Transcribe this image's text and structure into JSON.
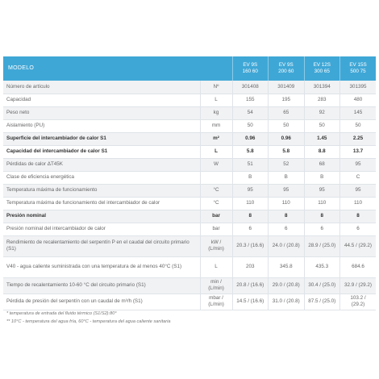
{
  "table": {
    "header": {
      "title": "MODELO",
      "models": [
        {
          "line1": "EV 9S",
          "line2": "160 60"
        },
        {
          "line1": "EV 9S",
          "line2": "200 60"
        },
        {
          "line1": "EV 12S",
          "line2": "300 65"
        },
        {
          "line1": "EV 15S",
          "line2": "500 75"
        }
      ]
    },
    "rows": [
      {
        "label": "Número de artículo",
        "unit": "Nº",
        "values": [
          "301408",
          "301409",
          "301394",
          "301395"
        ],
        "bold": false
      },
      {
        "label": "Capacidad",
        "unit": "L",
        "values": [
          "155",
          "195",
          "283",
          "480"
        ],
        "bold": false
      },
      {
        "label": "Peso neto",
        "unit": "kg",
        "values": [
          "54",
          "65",
          "92",
          "145"
        ],
        "bold": false
      },
      {
        "label": "Aislamiento (PU)",
        "unit": "mm",
        "values": [
          "50",
          "50",
          "50",
          "50"
        ],
        "bold": false
      },
      {
        "label": "Superficie del intercambiador de calor S1",
        "unit": "m²",
        "values": [
          "0.96",
          "0.96",
          "1.45",
          "2.25"
        ],
        "bold": true
      },
      {
        "label": "Capacidad del intercambiador de calor S1",
        "unit": "L",
        "values": [
          "5.8",
          "5.8",
          "8.8",
          "13.7"
        ],
        "bold": true
      },
      {
        "label": "Pérdidas de calor ΔT45K",
        "unit": "W",
        "values": [
          "51",
          "52",
          "68",
          "95"
        ],
        "bold": false
      },
      {
        "label": "Clase de eficiencia energética",
        "unit": "",
        "values": [
          "B",
          "B",
          "B",
          "C"
        ],
        "bold": false
      },
      {
        "label": "Temperatura máxima de funcionamiento",
        "unit": "°C",
        "values": [
          "95",
          "95",
          "95",
          "95"
        ],
        "bold": false
      },
      {
        "label": "Temperatura máxima de funcionamiento del intercambiador de calor",
        "unit": "°C",
        "values": [
          "110",
          "110",
          "110",
          "110"
        ],
        "bold": false
      },
      {
        "label": "Presión nominal",
        "unit": "bar",
        "values": [
          "8",
          "8",
          "8",
          "8"
        ],
        "bold": true
      },
      {
        "label": "Presión nominal del intercambiador de calor",
        "unit": "bar",
        "values": [
          "6",
          "6",
          "6",
          "6"
        ],
        "bold": false
      },
      {
        "label": "Rendimiento de recalentamiento del serpentín P en el caudal del circuito primario (S1)",
        "unit": "kW / (L/min)",
        "values": [
          "20.3 / (16.6)",
          "24.0 / (20.8)",
          "28.9 / (25.0)",
          "44.5 / (29.2)"
        ],
        "bold": false
      },
      {
        "label": "V40 - agua caliente suministrada con una temperatura de al menos 40°C (S1)",
        "unit": "L",
        "values": [
          "203",
          "345.8",
          "435.3",
          "684.6"
        ],
        "bold": false
      },
      {
        "label": "Tiempo de recalentamiento 10-60 °C del circuito primario (S1)",
        "unit": "min / (L/min)",
        "values": [
          "20.8 / (16.6)",
          "29.0 / (20.8)",
          "30.4 / (25.0)",
          "32.9 / (29.2)"
        ],
        "bold": false
      },
      {
        "label": "Pérdida de presión del serpentín con un caudal de m³/h (S1)",
        "unit": "mbar / (L/min)",
        "values": [
          "14.5 / (16.6)",
          "31.0 / (20.8)",
          "87.5 / (25.0)",
          "103.2 / (29.2)"
        ],
        "bold": false
      }
    ]
  },
  "footnotes": [
    "* temperatura de entrada del fluido térmico (S1/S2):80°",
    "** 10°C - temperatura del agua fría, 60°C - temperatura del agua caliente sanitaria"
  ]
}
